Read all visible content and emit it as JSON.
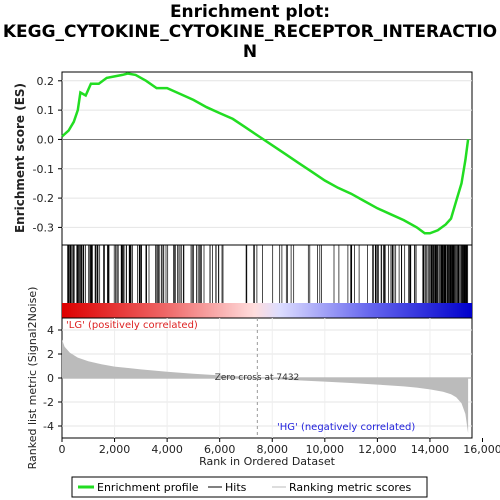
{
  "title_lines": [
    "Enrichment plot:",
    "KEGG_CYTOKINE_CYTOKINE_RECEPTOR_INTERACTIO",
    "N"
  ],
  "legend": {
    "items": [
      "Enrichment profile",
      "Hits",
      "Ranking metric scores"
    ]
  },
  "colors": {
    "es_line": "#22dd22",
    "hits": "#000000",
    "metric_fill": "#bbbbbb",
    "pos_label": "#dd2222",
    "neg_label": "#2222dd"
  },
  "chart_data": [
    {
      "type": "line",
      "name": "es-panel",
      "ylabel": "Enrichment score (ES)",
      "xlim": [
        0,
        15600
      ],
      "ylim": [
        -0.36,
        0.23
      ],
      "yticks": [
        0.2,
        0.1,
        0.0,
        -0.1,
        -0.2,
        -0.3
      ],
      "ytick_labels": [
        "0.2",
        "0.1",
        "0.0",
        "-0.1",
        "-0.2",
        "-0.3"
      ],
      "x": [
        0,
        250,
        450,
        600,
        700,
        900,
        1100,
        1400,
        1700,
        2000,
        2300,
        2500,
        2800,
        3200,
        3600,
        4000,
        4500,
        5000,
        5500,
        6000,
        6500,
        7000,
        7500,
        8000,
        8500,
        9000,
        9500,
        10000,
        10500,
        11000,
        11500,
        12000,
        12500,
        13000,
        13500,
        13800,
        14000,
        14300,
        14600,
        14800,
        15000,
        15200,
        15350,
        15450
      ],
      "y": [
        0.01,
        0.03,
        0.06,
        0.1,
        0.16,
        0.15,
        0.19,
        0.19,
        0.21,
        0.215,
        0.22,
        0.225,
        0.22,
        0.2,
        0.175,
        0.175,
        0.155,
        0.135,
        0.11,
        0.09,
        0.07,
        0.04,
        0.01,
        -0.02,
        -0.05,
        -0.08,
        -0.11,
        -0.14,
        -0.165,
        -0.185,
        -0.21,
        -0.235,
        -0.255,
        -0.275,
        -0.3,
        -0.32,
        -0.32,
        -0.31,
        -0.29,
        -0.27,
        -0.21,
        -0.15,
        -0.07,
        0.0
      ]
    },
    {
      "type": "bar",
      "name": "ranked-metric-panel",
      "xlabel": "Rank in Ordered Dataset",
      "ylabel": "Ranked list metric (Signal2Noise)",
      "xlim": [
        0,
        15600
      ],
      "ylim": [
        -5,
        5
      ],
      "xticks": [
        0,
        2000,
        4000,
        6000,
        8000,
        10000,
        12000,
        14000,
        16000
      ],
      "xtick_labels": [
        "0",
        "2,000",
        "4,000",
        "6,000",
        "8,000",
        "10,000",
        "12,000",
        "14,000",
        "16,000"
      ],
      "yticks": [
        4,
        2,
        0,
        -2,
        -4
      ],
      "ytick_labels": [
        "4",
        "2",
        "0",
        "-2",
        "-4"
      ],
      "x": [
        0,
        100,
        300,
        600,
        1000,
        1500,
        2000,
        3000,
        4000,
        5000,
        6000,
        7000,
        7432,
        8000,
        9000,
        10000,
        11000,
        12000,
        13000,
        13500,
        14000,
        14500,
        14800,
        15000,
        15200,
        15350,
        15450
      ],
      "y": [
        3.2,
        2.6,
        2.1,
        1.7,
        1.4,
        1.15,
        0.95,
        0.72,
        0.52,
        0.36,
        0.22,
        0.1,
        0.0,
        -0.08,
        -0.2,
        -0.3,
        -0.42,
        -0.55,
        -0.7,
        -0.8,
        -0.95,
        -1.15,
        -1.35,
        -1.6,
        -2.1,
        -3.0,
        -4.6
      ],
      "zero_cross": 7432,
      "annotations": [
        "Zero cross at 7432",
        "'LG' (positively correlated)",
        "'HG' (negatively correlated)"
      ]
    }
  ]
}
